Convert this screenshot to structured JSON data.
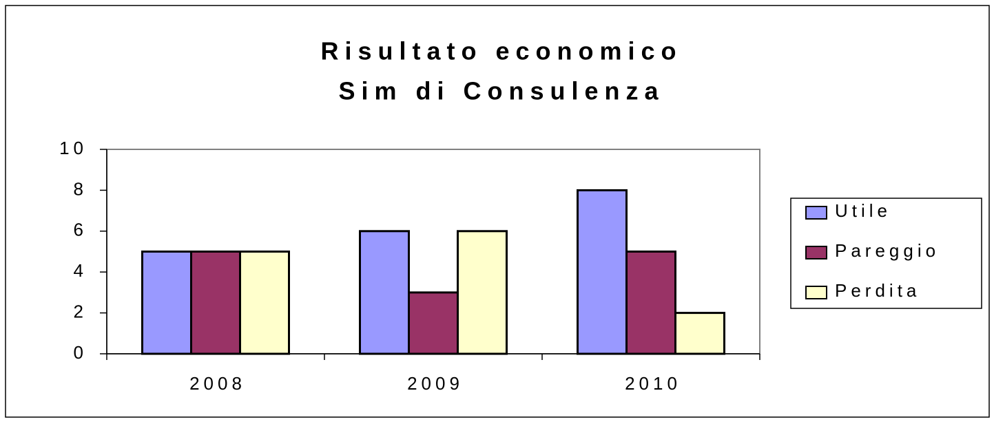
{
  "chart_data": {
    "type": "bar",
    "title": [
      "Risultato economico",
      "Sim di Consulenza"
    ],
    "categories": [
      "2008",
      "2009",
      "2010"
    ],
    "series": [
      {
        "name": "Utile",
        "color": "#9999ff",
        "values": [
          5,
          6,
          8
        ]
      },
      {
        "name": "Pareggio",
        "color": "#993366",
        "values": [
          5,
          3,
          5
        ]
      },
      {
        "name": "Perdita",
        "color": "#ffffcc",
        "values": [
          5,
          6,
          2
        ]
      }
    ],
    "ylim": [
      0,
      10
    ],
    "yticks": [
      0,
      2,
      4,
      6,
      8,
      10
    ],
    "grid": false,
    "legend": "right"
  }
}
